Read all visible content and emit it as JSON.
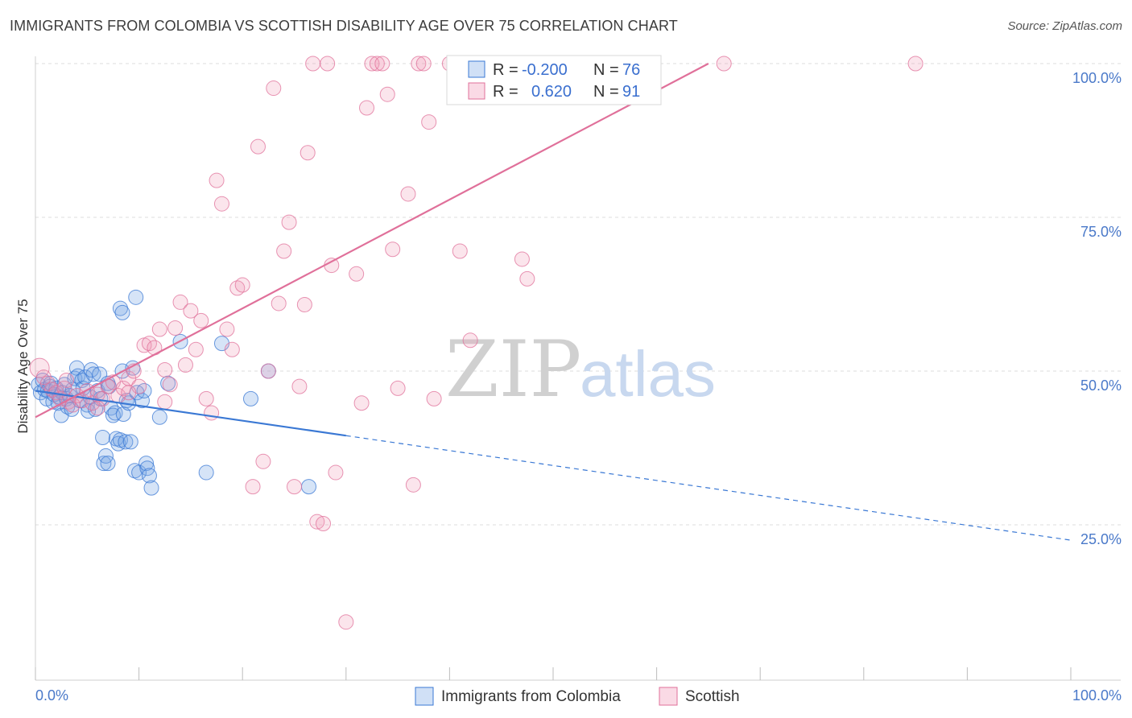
{
  "title": "IMMIGRANTS FROM COLOMBIA VS SCOTTISH DISABILITY AGE OVER 75 CORRELATION CHART",
  "source": "Source: ZipAtlas.com",
  "watermark": {
    "zip": "ZIP",
    "atlas": "atlas"
  },
  "colors": {
    "blue": "#3a78d4",
    "blue_fill": "rgba(120,165,230,0.30)",
    "pink": "#e0709a",
    "pink_fill": "rgba(240,150,180,0.25)",
    "grid": "#dcdcdc",
    "tick_text": "#4a79c9"
  },
  "legend": {
    "rows": [
      {
        "r_label": "R =",
        "r_value": "-0.200",
        "n_label": "N =",
        "n_value": "76",
        "series": "blue"
      },
      {
        "r_label": "R =",
        "r_value": "0.620",
        "n_label": "N =",
        "n_value": "91",
        "series": "pink"
      }
    ]
  },
  "bottom_legend": [
    {
      "label": "Immigrants from Colombia",
      "series": "blue"
    },
    {
      "label": "Scottish",
      "series": "pink"
    }
  ],
  "chart_data": {
    "type": "scatter",
    "title": "IMMIGRANTS FROM COLOMBIA VS SCOTTISH DISABILITY AGE OVER 75 CORRELATION CHART",
    "xlabel": "",
    "ylabel": "Disability Age Over 75",
    "xlim": [
      0,
      100
    ],
    "ylim": [
      0,
      105
    ],
    "x_ticks": [
      "0.0%",
      "100.0%"
    ],
    "y_ticks": [
      {
        "value": 25,
        "label": "25.0%"
      },
      {
        "value": 50,
        "label": "50.0%"
      },
      {
        "value": 75,
        "label": "75.0%"
      },
      {
        "value": 100,
        "label": "100.0%"
      }
    ],
    "grid": true,
    "legend_placement": "top-center",
    "series": [
      {
        "name": "Immigrants from Colombia",
        "color": "#3a78d4",
        "trend": {
          "x0": 0,
          "y0": 46.8,
          "x1": 30,
          "y1": 39.5,
          "dash_to_x": 100,
          "dash_to_y": 22.5
        },
        "points": [
          [
            0.3,
            47.8
          ],
          [
            0.5,
            46.5
          ],
          [
            0.7,
            48.5
          ],
          [
            0.9,
            47.0
          ],
          [
            1.1,
            45.5
          ],
          [
            1.2,
            46.8
          ],
          [
            1.4,
            47.5
          ],
          [
            1.5,
            48.0
          ],
          [
            1.7,
            45.0
          ],
          [
            1.8,
            46.2
          ],
          [
            2.0,
            47.2
          ],
          [
            2.2,
            44.8
          ],
          [
            2.3,
            45.8
          ],
          [
            2.5,
            42.8
          ],
          [
            2.6,
            46.5
          ],
          [
            2.8,
            47.8
          ],
          [
            3.0,
            45.5
          ],
          [
            3.1,
            44.2
          ],
          [
            3.3,
            46.0
          ],
          [
            3.5,
            43.8
          ],
          [
            3.6,
            47.0
          ],
          [
            3.8,
            48.8
          ],
          [
            4.0,
            50.5
          ],
          [
            4.1,
            49.2
          ],
          [
            4.3,
            45.2
          ],
          [
            4.5,
            48.5
          ],
          [
            4.6,
            47.2
          ],
          [
            4.8,
            49.0
          ],
          [
            5.0,
            44.5
          ],
          [
            5.1,
            43.5
          ],
          [
            5.3,
            45.8
          ],
          [
            5.4,
            50.2
          ],
          [
            5.6,
            49.5
          ],
          [
            5.8,
            43.8
          ],
          [
            6.0,
            46.8
          ],
          [
            6.2,
            49.5
          ],
          [
            6.3,
            45.5
          ],
          [
            6.5,
            39.2
          ],
          [
            6.6,
            35.0
          ],
          [
            6.8,
            36.2
          ],
          [
            7.0,
            48.0
          ],
          [
            7.1,
            47.5
          ],
          [
            7.3,
            44.0
          ],
          [
            7.5,
            42.8
          ],
          [
            7.7,
            43.2
          ],
          [
            7.8,
            39.0
          ],
          [
            8.0,
            38.2
          ],
          [
            8.2,
            38.8
          ],
          [
            8.4,
            50.0
          ],
          [
            8.5,
            43.0
          ],
          [
            8.7,
            38.5
          ],
          [
            8.8,
            45.2
          ],
          [
            9.0,
            44.8
          ],
          [
            9.2,
            38.5
          ],
          [
            9.4,
            50.5
          ],
          [
            9.6,
            33.8
          ],
          [
            9.8,
            46.5
          ],
          [
            10.0,
            33.5
          ],
          [
            10.3,
            45.2
          ],
          [
            10.5,
            46.8
          ],
          [
            10.7,
            35.0
          ],
          [
            10.8,
            34.2
          ],
          [
            11.0,
            33.0
          ],
          [
            11.2,
            31.0
          ],
          [
            12.0,
            42.5
          ],
          [
            12.8,
            48.0
          ],
          [
            14.0,
            54.8
          ],
          [
            16.5,
            33.5
          ],
          [
            18.0,
            54.5
          ],
          [
            20.8,
            45.5
          ],
          [
            22.5,
            50.0
          ],
          [
            8.2,
            60.2
          ],
          [
            8.4,
            59.5
          ],
          [
            9.7,
            62.0
          ],
          [
            26.4,
            31.2
          ],
          [
            7.0,
            35.0
          ]
        ]
      },
      {
        "name": "Scottish",
        "color": "#e0709a",
        "trend": {
          "x0": 0,
          "y0": 42.5,
          "x1": 65,
          "y1": 100
        },
        "points": [
          [
            0.4,
            50.5
          ],
          [
            0.8,
            49.0
          ],
          [
            1.2,
            48.0
          ],
          [
            1.6,
            47.0
          ],
          [
            2.0,
            46.5
          ],
          [
            2.4,
            45.5
          ],
          [
            2.8,
            47.2
          ],
          [
            3.2,
            45.0
          ],
          [
            3.6,
            44.5
          ],
          [
            4.0,
            46.0
          ],
          [
            4.5,
            45.2
          ],
          [
            5.0,
            46.8
          ],
          [
            5.5,
            44.8
          ],
          [
            6.0,
            46.2
          ],
          [
            6.5,
            45.5
          ],
          [
            7.0,
            47.5
          ],
          [
            7.5,
            48.2
          ],
          [
            8.0,
            46.0
          ],
          [
            8.5,
            47.2
          ],
          [
            9.0,
            48.8
          ],
          [
            9.5,
            50.0
          ],
          [
            10.0,
            47.5
          ],
          [
            10.5,
            54.2
          ],
          [
            11.0,
            54.5
          ],
          [
            11.5,
            53.8
          ],
          [
            12.0,
            56.8
          ],
          [
            12.5,
            50.2
          ],
          [
            13.0,
            47.8
          ],
          [
            13.5,
            57.0
          ],
          [
            14.0,
            61.2
          ],
          [
            14.5,
            51.0
          ],
          [
            15.0,
            59.8
          ],
          [
            15.5,
            53.5
          ],
          [
            16.0,
            58.2
          ],
          [
            16.5,
            45.5
          ],
          [
            17.0,
            43.2
          ],
          [
            17.5,
            81.0
          ],
          [
            18.0,
            77.2
          ],
          [
            18.5,
            56.8
          ],
          [
            19.0,
            53.5
          ],
          [
            19.5,
            63.5
          ],
          [
            20.0,
            64.0
          ],
          [
            21.0,
            31.2
          ],
          [
            21.5,
            86.5
          ],
          [
            22.0,
            35.3
          ],
          [
            22.5,
            50.0
          ],
          [
            23.0,
            96.0
          ],
          [
            23.5,
            61.0
          ],
          [
            24.0,
            69.5
          ],
          [
            24.5,
            74.2
          ],
          [
            25.0,
            31.2
          ],
          [
            25.5,
            47.5
          ],
          [
            26.0,
            60.8
          ],
          [
            26.3,
            85.5
          ],
          [
            26.8,
            100
          ],
          [
            27.2,
            25.5
          ],
          [
            27.8,
            25.2
          ],
          [
            28.2,
            100
          ],
          [
            28.6,
            67.2
          ],
          [
            29.0,
            33.5
          ],
          [
            30.0,
            9.2
          ],
          [
            31.0,
            65.8
          ],
          [
            31.5,
            44.8
          ],
          [
            32.0,
            92.8
          ],
          [
            32.5,
            100
          ],
          [
            33.0,
            100
          ],
          [
            33.5,
            100
          ],
          [
            34.0,
            95.0
          ],
          [
            34.5,
            69.8
          ],
          [
            35.0,
            47.2
          ],
          [
            36.0,
            78.8
          ],
          [
            36.5,
            31.5
          ],
          [
            37.0,
            100
          ],
          [
            37.5,
            100
          ],
          [
            38.0,
            90.5
          ],
          [
            38.5,
            45.5
          ],
          [
            40.0,
            100
          ],
          [
            41.0,
            69.5
          ],
          [
            42.0,
            55.0
          ],
          [
            44.0,
            100
          ],
          [
            45.0,
            100
          ],
          [
            47.0,
            68.2
          ],
          [
            47.5,
            65.0
          ],
          [
            55.0,
            100
          ],
          [
            59.0,
            100
          ],
          [
            66.5,
            100
          ],
          [
            85.0,
            100
          ],
          [
            12.5,
            45.0
          ],
          [
            9.0,
            46.5
          ],
          [
            6.0,
            44.0
          ],
          [
            3.0,
            48.5
          ]
        ]
      }
    ]
  }
}
